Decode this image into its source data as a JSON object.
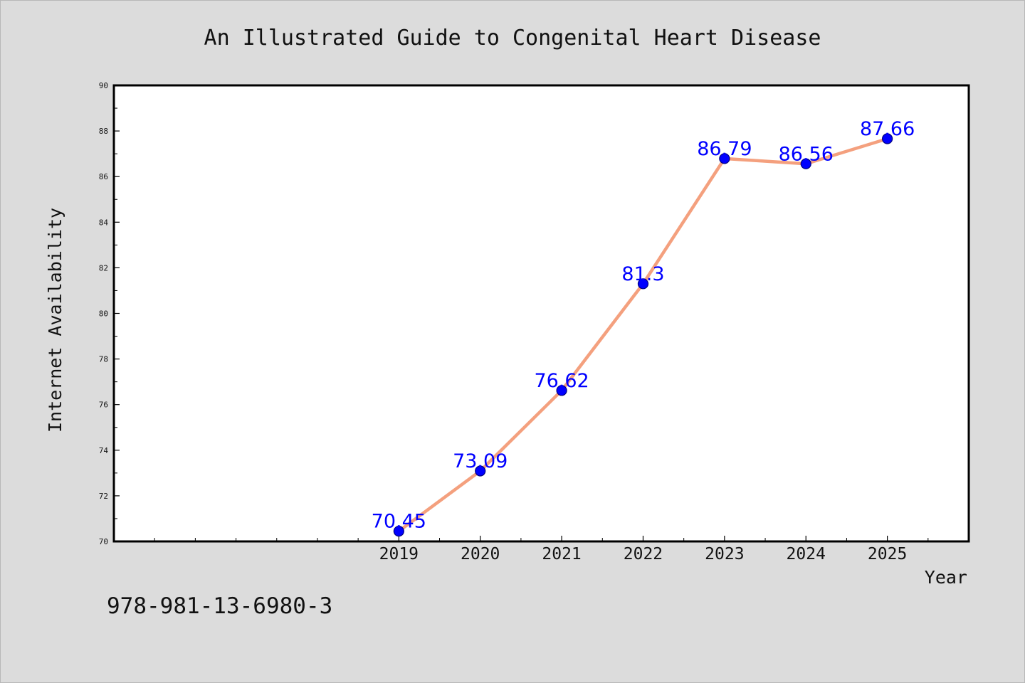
{
  "chart_data": {
    "type": "line",
    "title": "An Illustrated Guide to Congenital Heart Disease",
    "xlabel": "Year",
    "ylabel": "Internet Availability",
    "categories": [
      "2019",
      "2020",
      "2021",
      "2022",
      "2023",
      "2024",
      "2025"
    ],
    "x": [
      2019,
      2020,
      2021,
      2022,
      2023,
      2024,
      2025
    ],
    "values": [
      70.45,
      73.09,
      76.62,
      81.3,
      86.79,
      86.56,
      87.66
    ],
    "data_labels": [
      "70.45",
      "73.09",
      "76.62",
      "81.3",
      "86.79",
      "86.56",
      "87.66"
    ],
    "xlim": [
      2015.5,
      2026.0
    ],
    "ylim": [
      70,
      90
    ],
    "yticks": [
      "70",
      "72",
      "74",
      "76",
      "78",
      "80",
      "82",
      "84",
      "86",
      "88",
      "90"
    ],
    "grid": false,
    "legend": "none",
    "colors": {
      "line": "#f4a07e",
      "marker": "#0000ff",
      "marker_edge": "#000080",
      "data_label": "#0000ff",
      "axis": "#000000",
      "background": "#dcdcdc",
      "plot_background": "#ffffff"
    }
  },
  "footer": {
    "isbn": "978-981-13-6980-3"
  }
}
